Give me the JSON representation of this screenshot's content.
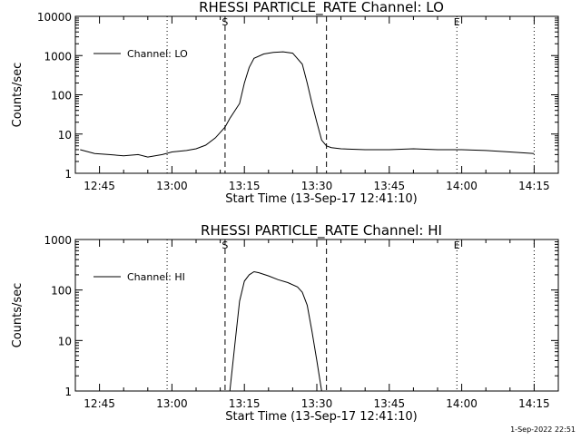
{
  "colors": {
    "background": "#ffffff",
    "foreground": "#000000"
  },
  "timestamp": "1-Sep-2022 22:51",
  "chart_data": [
    {
      "type": "line",
      "title": "RHESSI PARTICLE_RATE Channel: LO",
      "xlabel": "Start Time (13-Sep-17 12:41:10)",
      "ylabel": "Counts/sec",
      "y_scale": "log",
      "ylim": [
        1,
        10000
      ],
      "y_ticks": [
        1,
        10,
        100,
        1000,
        10000
      ],
      "y_tick_labels": [
        "1",
        "10",
        "100",
        "1000",
        "10000"
      ],
      "xlim": [
        "12:40",
        "14:20"
      ],
      "x_tick_labels": [
        "12:45",
        "13:00",
        "13:15",
        "13:30",
        "13:45",
        "14:00",
        "14:15"
      ],
      "legend": "top-left",
      "grid": false,
      "series": [
        {
          "name": "Channel: LO",
          "x": [
            "12:41",
            "12:44",
            "12:47",
            "12:50",
            "12:53",
            "12:55",
            "12:58",
            "13:00",
            "13:03",
            "13:05",
            "13:07",
            "13:09",
            "13:11",
            "13:12",
            "13:14",
            "13:15",
            "13:16",
            "13:17",
            "13:19",
            "13:21",
            "13:23",
            "13:25",
            "13:27",
            "13:28",
            "13:29",
            "13:30",
            "13:31",
            "13:32",
            "13:33",
            "13:35",
            "13:40",
            "13:45",
            "13:50",
            "13:55",
            "14:00",
            "14:05",
            "14:10",
            "14:15"
          ],
          "values": [
            4,
            3.2,
            3,
            2.8,
            3,
            2.6,
            3,
            3.5,
            3.8,
            4.2,
            5.2,
            8,
            15,
            25,
            60,
            200,
            500,
            850,
            1100,
            1200,
            1250,
            1150,
            600,
            200,
            60,
            20,
            7,
            5,
            4.5,
            4.2,
            4,
            4,
            4.2,
            4,
            4,
            3.8,
            3.5,
            3.2
          ]
        }
      ],
      "vertical_lines": [
        {
          "x": "12:59",
          "style": "dotted",
          "label": ""
        },
        {
          "x": "13:11",
          "style": "dashed",
          "label": "S"
        },
        {
          "x": "13:32",
          "style": "dashed",
          "label": ""
        },
        {
          "x": "13:59",
          "style": "dotted",
          "label": "E"
        },
        {
          "x": "14:15",
          "style": "dotted",
          "label": ""
        }
      ]
    },
    {
      "type": "line",
      "title": "RHESSI PARTICLE_RATE Channel: HI",
      "xlabel": "Start Time (13-Sep-17 12:41:10)",
      "ylabel": "Counts/sec",
      "y_scale": "log",
      "ylim": [
        1,
        1000
      ],
      "y_ticks": [
        1,
        10,
        100,
        1000
      ],
      "y_tick_labels": [
        "1",
        "10",
        "100",
        "1000"
      ],
      "xlim": [
        "12:40",
        "14:20"
      ],
      "x_tick_labels": [
        "12:45",
        "13:00",
        "13:15",
        "13:30",
        "13:45",
        "14:00",
        "14:15"
      ],
      "legend": "top-left",
      "grid": false,
      "series": [
        {
          "name": "Channel: HI",
          "x": [
            "13:12",
            "13:13",
            "13:14",
            "13:15",
            "13:16",
            "13:17",
            "13:18",
            "13:20",
            "13:22",
            "13:24",
            "13:26",
            "13:27",
            "13:28",
            "13:29",
            "13:30",
            "13:31"
          ],
          "values": [
            1,
            8,
            60,
            150,
            200,
            230,
            220,
            190,
            160,
            140,
            115,
            90,
            50,
            15,
            4,
            1
          ]
        }
      ],
      "vertical_lines": [
        {
          "x": "12:59",
          "style": "dotted",
          "label": ""
        },
        {
          "x": "13:11",
          "style": "dashed",
          "label": "S"
        },
        {
          "x": "13:32",
          "style": "dashed",
          "label": ""
        },
        {
          "x": "13:59",
          "style": "dotted",
          "label": "E"
        },
        {
          "x": "14:15",
          "style": "dotted",
          "label": ""
        }
      ]
    }
  ]
}
